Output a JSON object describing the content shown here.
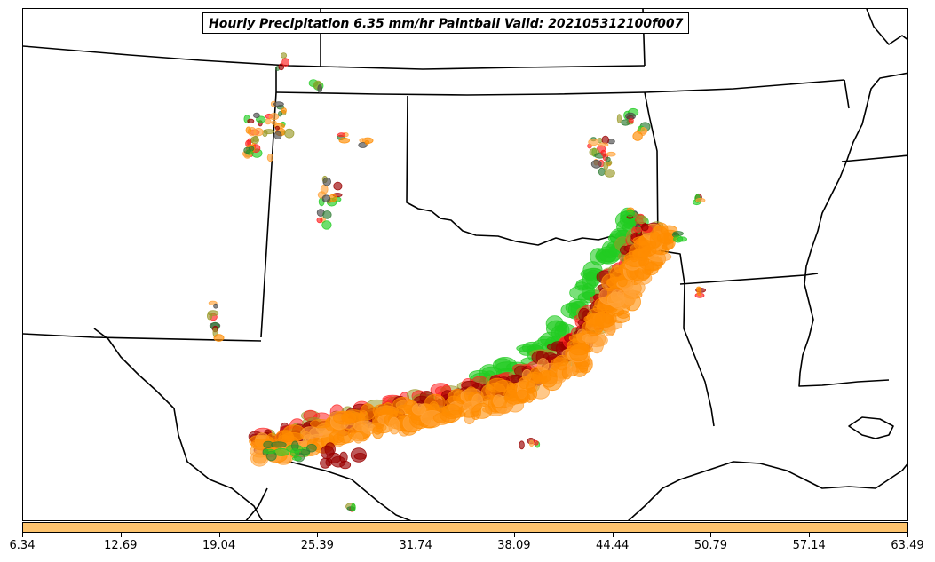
{
  "title": "Hourly Precipitation 6.35 mm/hr Paintball Valid: 202105312100f007",
  "colorbar": {
    "fill_color": "#fdc36d",
    "tick_labels": [
      "6.34",
      "12.69",
      "19.04",
      "25.39",
      "31.74",
      "38.09",
      "44.44",
      "50.79",
      "57.14",
      "63.49"
    ]
  },
  "paint_colors": {
    "red": "#ff2020",
    "dark_red": "#9a0000",
    "orange": "#ff8c00",
    "light_orange": "#ffa33a",
    "green": "#22cc22",
    "dark_green": "#2e7d32",
    "olive": "#9a9a2a",
    "gray": "#4a4a4a"
  },
  "map": {
    "features": [
      "state-borders",
      "coastline",
      "precipitation-paintball"
    ]
  }
}
